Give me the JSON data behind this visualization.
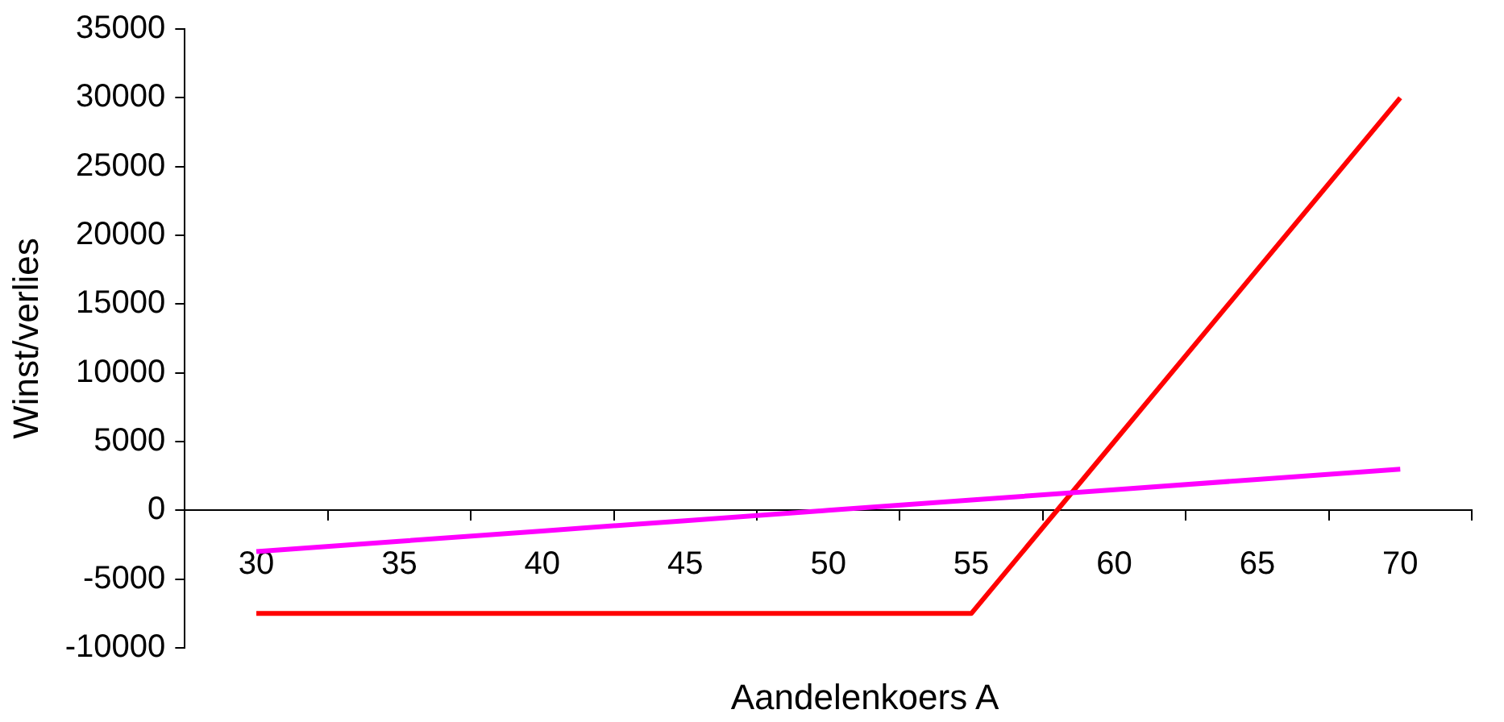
{
  "chart_data": {
    "type": "line",
    "xlabel": "Aandelenkoers A",
    "ylabel": "Winst/verlies",
    "categories": [
      "30",
      "35",
      "40",
      "45",
      "50",
      "55",
      "60",
      "65",
      "70"
    ],
    "series": [
      {
        "color": "#ff00ff",
        "values": [
          -3000,
          -2250,
          -1500,
          -750,
          0,
          750,
          1500,
          2250,
          3000
        ]
      },
      {
        "color": "#ff0000",
        "values": [
          -7500,
          -7500,
          -7500,
          -7500,
          -7500,
          -7500,
          5000,
          17500,
          30000
        ]
      }
    ],
    "ylim": [
      -10000,
      35000
    ],
    "yticks": [
      -10000,
      -5000,
      0,
      5000,
      10000,
      15000,
      20000,
      25000,
      30000,
      35000
    ],
    "grid": false,
    "legend": false,
    "marker": "none",
    "line_style": "solid"
  }
}
